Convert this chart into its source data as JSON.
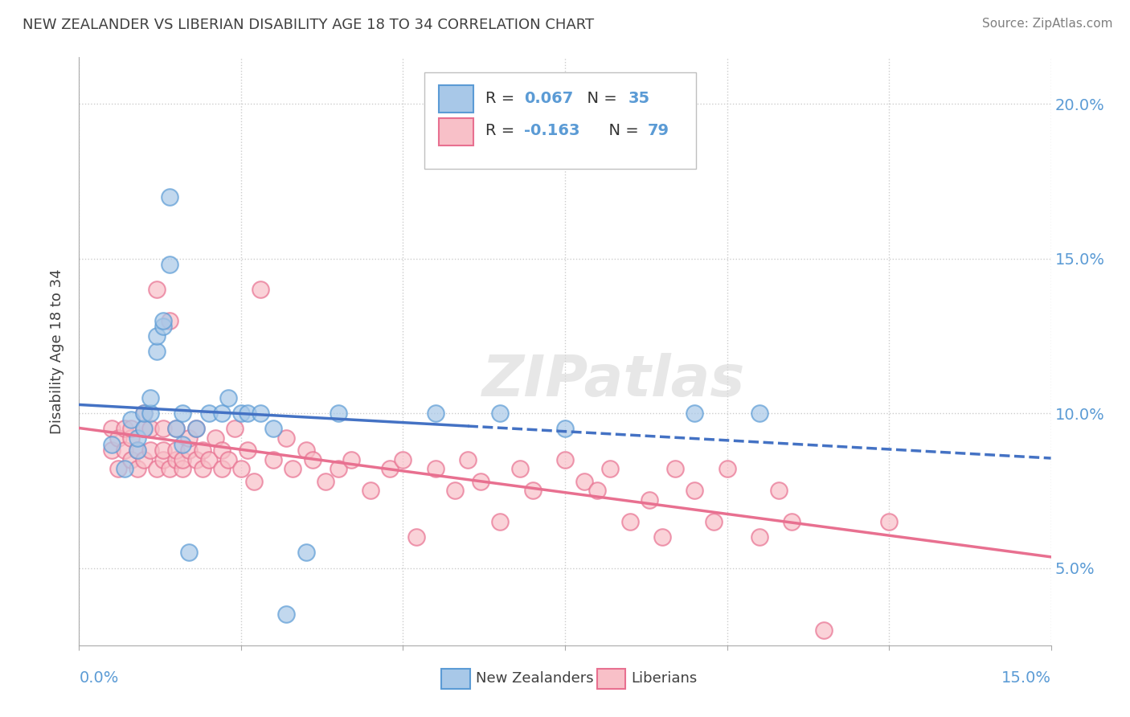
{
  "title": "NEW ZEALANDER VS LIBERIAN DISABILITY AGE 18 TO 34 CORRELATION CHART",
  "source": "Source: ZipAtlas.com",
  "ylabel": "Disability Age 18 to 34",
  "right_ytick_vals": [
    0.05,
    0.1,
    0.15,
    0.2
  ],
  "legend_nz_r": "0.067",
  "legend_nz_n": "35",
  "legend_lib_r": "-0.163",
  "legend_lib_n": "79",
  "legend_label_nz": "New Zealanders",
  "legend_label_lib": "Liberians",
  "nz_color": "#a8c8e8",
  "nz_edge_color": "#5b9bd5",
  "lib_color": "#f8c0c8",
  "lib_edge_color": "#e87090",
  "nz_line_color": "#4472c4",
  "lib_line_color": "#e87090",
  "watermark": "ZIPatlas",
  "xlim": [
    0.0,
    0.15
  ],
  "ylim": [
    0.025,
    0.215
  ],
  "nz_scatter_x": [
    0.005,
    0.007,
    0.008,
    0.009,
    0.009,
    0.01,
    0.01,
    0.011,
    0.011,
    0.012,
    0.012,
    0.013,
    0.013,
    0.014,
    0.014,
    0.015,
    0.016,
    0.016,
    0.017,
    0.018,
    0.02,
    0.022,
    0.023,
    0.025,
    0.026,
    0.028,
    0.03,
    0.032,
    0.035,
    0.04,
    0.055,
    0.065,
    0.075,
    0.095,
    0.105
  ],
  "nz_scatter_y": [
    0.09,
    0.082,
    0.098,
    0.088,
    0.092,
    0.095,
    0.1,
    0.1,
    0.105,
    0.12,
    0.125,
    0.128,
    0.13,
    0.148,
    0.17,
    0.095,
    0.09,
    0.1,
    0.055,
    0.095,
    0.1,
    0.1,
    0.105,
    0.1,
    0.1,
    0.1,
    0.095,
    0.035,
    0.055,
    0.1,
    0.1,
    0.1,
    0.095,
    0.1,
    0.1
  ],
  "lib_scatter_x": [
    0.005,
    0.005,
    0.006,
    0.006,
    0.007,
    0.007,
    0.008,
    0.008,
    0.008,
    0.009,
    0.009,
    0.01,
    0.01,
    0.01,
    0.011,
    0.011,
    0.012,
    0.012,
    0.013,
    0.013,
    0.013,
    0.014,
    0.014,
    0.015,
    0.015,
    0.015,
    0.016,
    0.016,
    0.017,
    0.017,
    0.018,
    0.018,
    0.019,
    0.019,
    0.02,
    0.021,
    0.022,
    0.022,
    0.023,
    0.024,
    0.025,
    0.026,
    0.027,
    0.028,
    0.03,
    0.032,
    0.033,
    0.035,
    0.036,
    0.038,
    0.04,
    0.042,
    0.045,
    0.048,
    0.05,
    0.052,
    0.055,
    0.058,
    0.06,
    0.062,
    0.065,
    0.068,
    0.07,
    0.075,
    0.078,
    0.08,
    0.082,
    0.085,
    0.088,
    0.09,
    0.092,
    0.095,
    0.098,
    0.1,
    0.105,
    0.108,
    0.11,
    0.115,
    0.125
  ],
  "lib_scatter_y": [
    0.088,
    0.095,
    0.082,
    0.092,
    0.088,
    0.095,
    0.085,
    0.092,
    0.095,
    0.082,
    0.088,
    0.095,
    0.085,
    0.1,
    0.088,
    0.095,
    0.082,
    0.14,
    0.085,
    0.088,
    0.095,
    0.082,
    0.13,
    0.085,
    0.088,
    0.095,
    0.082,
    0.085,
    0.088,
    0.092,
    0.085,
    0.095,
    0.082,
    0.088,
    0.085,
    0.092,
    0.088,
    0.082,
    0.085,
    0.095,
    0.082,
    0.088,
    0.078,
    0.14,
    0.085,
    0.092,
    0.082,
    0.088,
    0.085,
    0.078,
    0.082,
    0.085,
    0.075,
    0.082,
    0.085,
    0.06,
    0.082,
    0.075,
    0.085,
    0.078,
    0.065,
    0.082,
    0.075,
    0.085,
    0.078,
    0.075,
    0.082,
    0.065,
    0.072,
    0.06,
    0.082,
    0.075,
    0.065,
    0.082,
    0.06,
    0.075,
    0.065,
    0.03,
    0.065
  ]
}
